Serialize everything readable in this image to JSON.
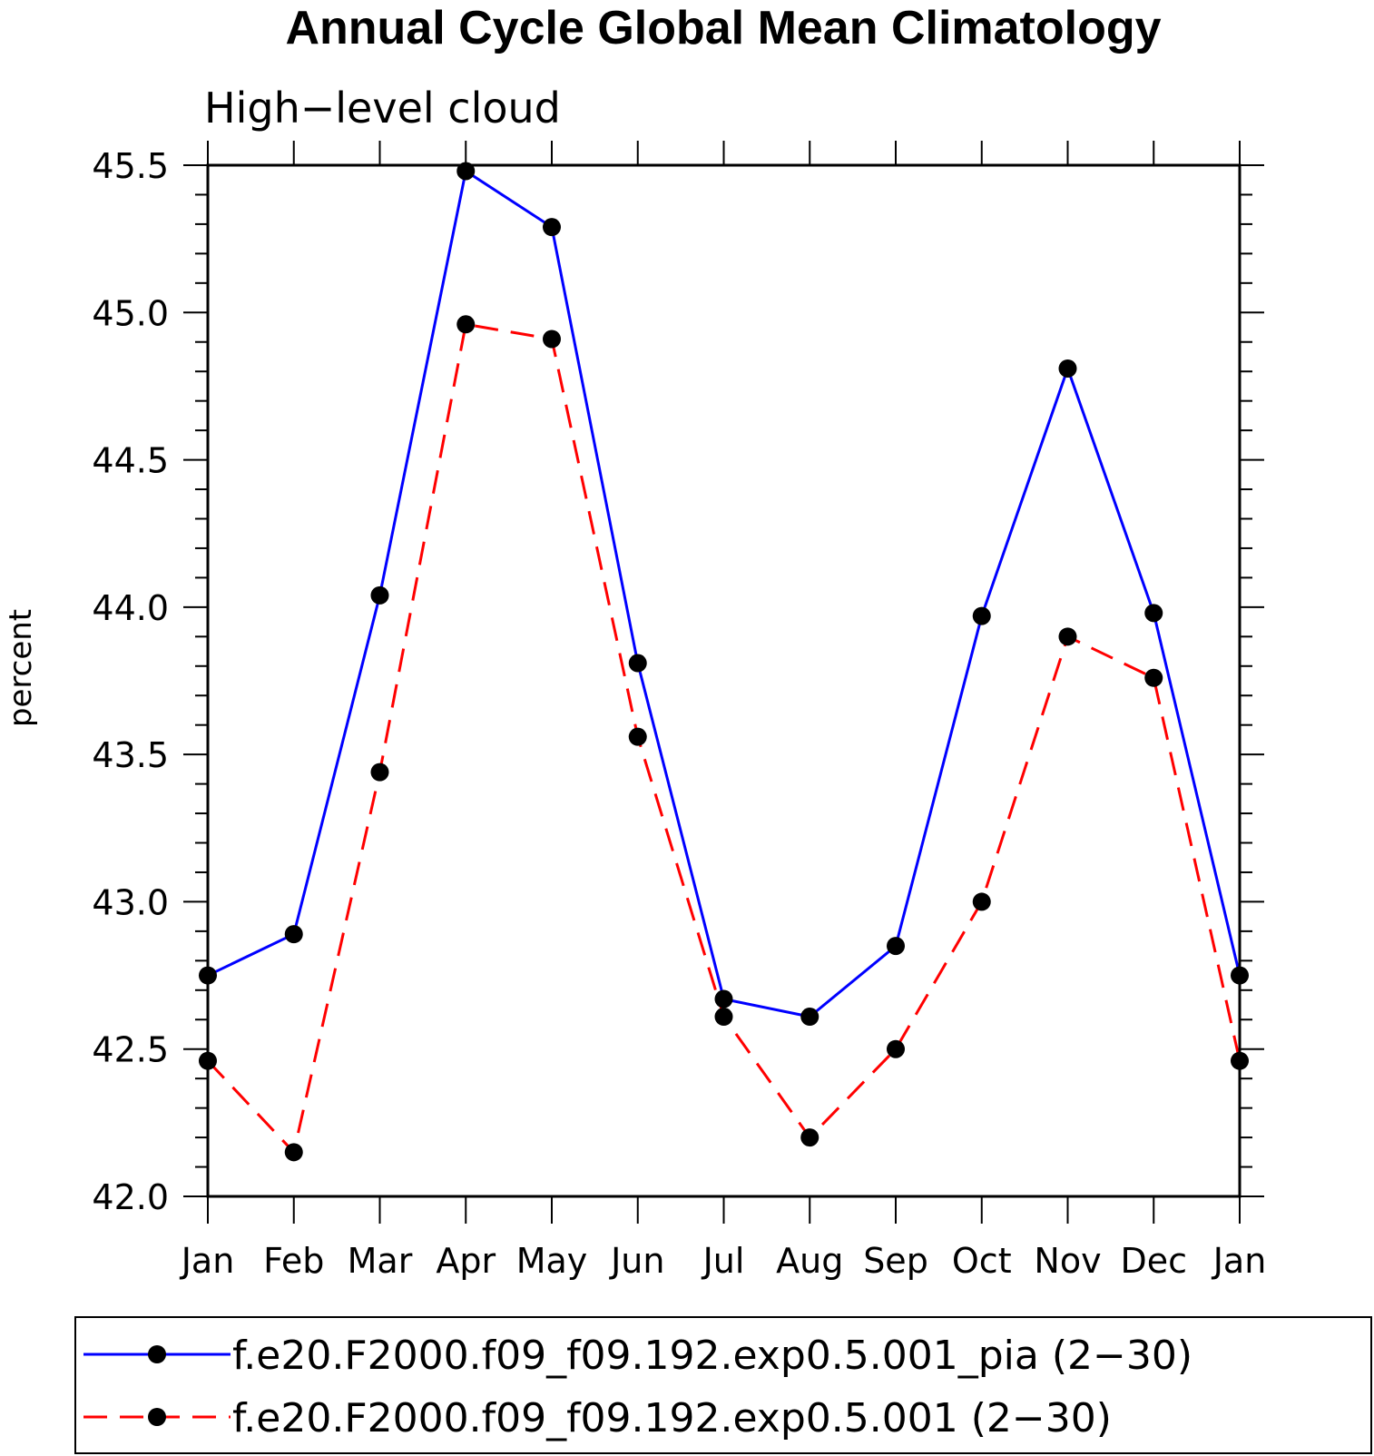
{
  "chart_data": {
    "type": "line",
    "title": "Annual Cycle Global Mean Climatology",
    "subtitle": "High−level cloud",
    "xlabel": "",
    "ylabel": "percent",
    "categories": [
      "Jan",
      "Feb",
      "Mar",
      "Apr",
      "May",
      "Jun",
      "Jul",
      "Aug",
      "Sep",
      "Oct",
      "Nov",
      "Dec",
      "Jan"
    ],
    "ylim": [
      42.0,
      45.5
    ],
    "yticks": [
      "42.0",
      "42.5",
      "43.0",
      "43.5",
      "44.0",
      "44.5",
      "45.0",
      "45.5"
    ],
    "grid": false,
    "legend_position": "bottom",
    "series": [
      {
        "name": "f.e20.F2000.f09_f09.192.exp0.5.001_pia (2−30)",
        "color": "#0000ff",
        "dash": "solid",
        "marker": "filled-circle",
        "values": [
          42.75,
          42.89,
          44.04,
          45.48,
          45.29,
          43.81,
          42.67,
          42.61,
          42.85,
          43.97,
          44.81,
          43.98,
          42.75
        ]
      },
      {
        "name": "f.e20.F2000.f09_f09.192.exp0.5.001 (2−30)",
        "color": "#ff0000",
        "dash": "dashed",
        "marker": "filled-circle",
        "values": [
          42.46,
          42.15,
          43.44,
          44.96,
          44.91,
          43.56,
          42.61,
          42.2,
          42.5,
          43.0,
          43.9,
          43.76,
          42.46
        ]
      }
    ]
  }
}
